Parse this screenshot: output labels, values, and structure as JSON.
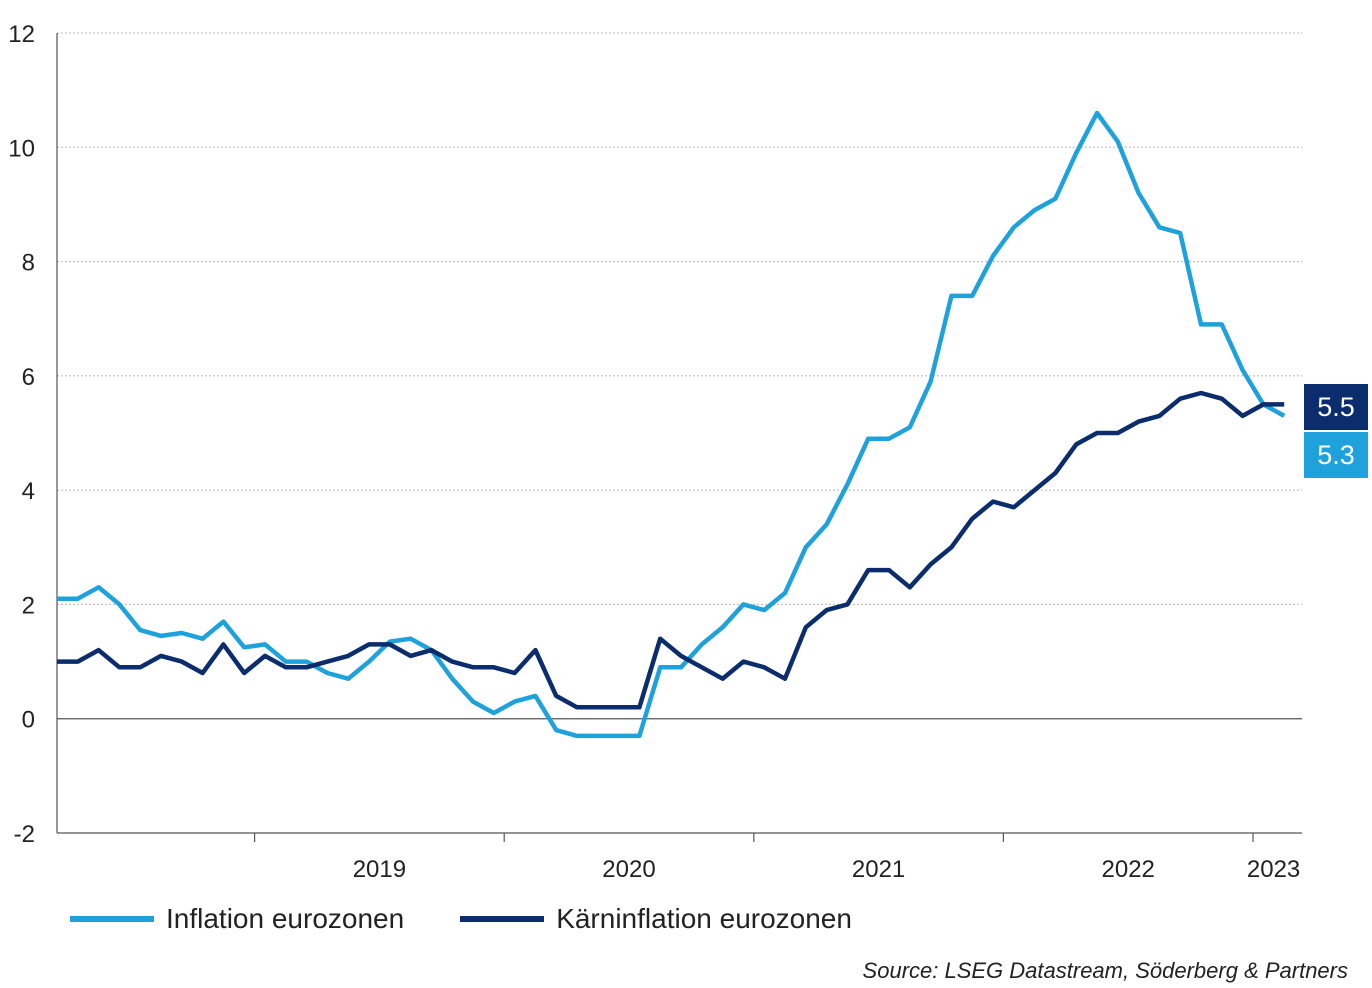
{
  "chart_data": {
    "type": "line",
    "xlabel": "",
    "ylabel": "",
    "ylim": [
      -2,
      12
    ],
    "yticks": [
      -2,
      0,
      2,
      4,
      6,
      8,
      10,
      12
    ],
    "year_labels": [
      "2019",
      "2020",
      "2021",
      "2022",
      "2023"
    ],
    "x_start": "2018-03",
    "x_end": "2023-06",
    "grid": true,
    "legend_placement": "bottom",
    "series": [
      {
        "name": "Inflation eurozonen",
        "color": "#1fa2dc",
        "values": [
          2.1,
          2.1,
          2.3,
          2.0,
          1.55,
          1.45,
          1.5,
          1.4,
          1.7,
          1.25,
          1.3,
          1.0,
          1.0,
          0.8,
          0.7,
          1.0,
          1.35,
          1.4,
          1.2,
          0.7,
          0.3,
          0.1,
          0.3,
          0.4,
          -0.2,
          -0.3,
          -0.3,
          -0.3,
          -0.3,
          0.9,
          0.9,
          1.3,
          1.6,
          2.0,
          1.9,
          2.2,
          3.0,
          3.4,
          4.1,
          4.9,
          4.9,
          5.1,
          5.9,
          7.4,
          7.4,
          8.1,
          8.6,
          8.9,
          9.1,
          9.9,
          10.6,
          10.1,
          9.2,
          8.6,
          8.5,
          6.9,
          6.9,
          6.1,
          5.5,
          5.3
        ]
      },
      {
        "name": "Kärninflation eurozonen",
        "color": "#0b2d6d",
        "values": [
          1.0,
          1.0,
          1.2,
          0.9,
          0.9,
          1.1,
          1.0,
          0.8,
          1.3,
          0.8,
          1.1,
          0.9,
          0.9,
          1.0,
          1.1,
          1.3,
          1.3,
          1.1,
          1.2,
          1.0,
          0.9,
          0.9,
          0.8,
          1.2,
          0.4,
          0.2,
          0.2,
          0.2,
          0.2,
          1.4,
          1.1,
          0.9,
          0.7,
          1.0,
          0.9,
          0.7,
          1.6,
          1.9,
          2.0,
          2.6,
          2.6,
          2.3,
          2.7,
          3.0,
          3.5,
          3.8,
          3.7,
          4.0,
          4.3,
          4.8,
          5.0,
          5.0,
          5.2,
          5.3,
          5.6,
          5.7,
          5.6,
          5.3,
          5.5,
          5.5
        ]
      }
    ],
    "end_labels": [
      {
        "series": "Kärninflation eurozonen",
        "text": "5.5",
        "color": "#0b2d6d"
      },
      {
        "series": "Inflation eurozonen",
        "text": "5.3",
        "color": "#1fa2dc"
      }
    ]
  },
  "source": "Source: LSEG Datastream, Söderberg & Partners"
}
